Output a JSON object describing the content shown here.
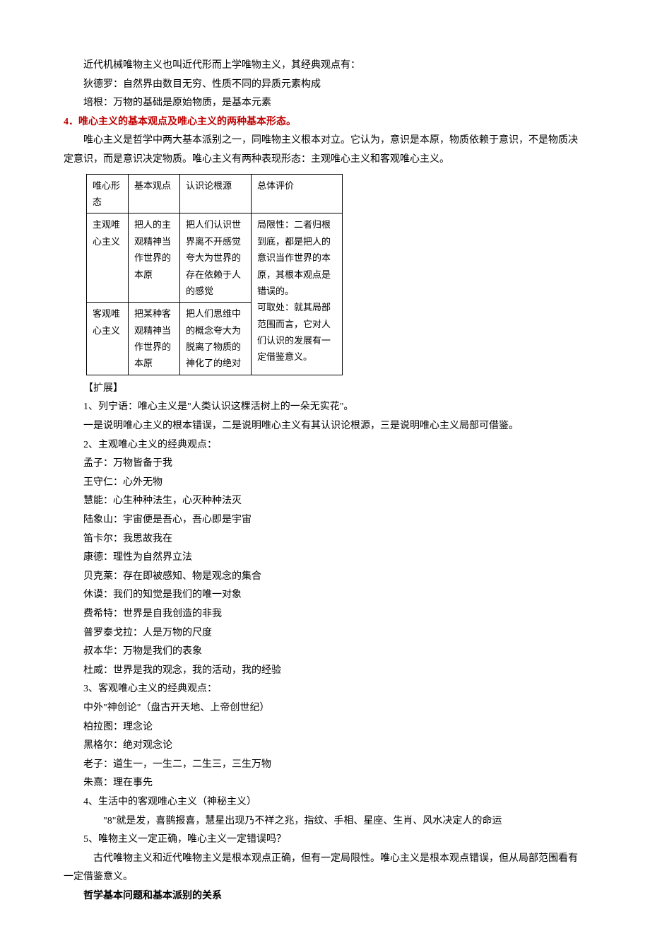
{
  "intro": {
    "l1": "近代机械唯物主义也叫近代形而上学唯物主义，其经典观点有：",
    "l2": "狄德罗：自然界由数目无穷、性质不同的异质元素构成",
    "l3": "培根：万物的基础是原始物质，是基本元素"
  },
  "section4": {
    "title": "4．唯心主义的基本观点及唯心主义的两种基本形态。",
    "body": "唯心主义是哲学中两大基本派别之一，同唯物主义根本对立。它认为，意识是本原，物质依赖于意识，不是物质决定意识，而是意识决定物质。唯心主义有两种表现形态：主观唯心主义和客观唯心主义。"
  },
  "table": {
    "header": {
      "c1": "唯心形态",
      "c2": "基本观点",
      "c3": "认识论根源",
      "c4": "总体评价"
    },
    "row1": {
      "c1": "主观唯心主义",
      "c2": "把人的主观精神当作世界的本原",
      "c3": "把人们认识世界离不开感觉夸大为世界的存在依赖于人的感觉",
      "c4": "局限性：二者归根到底，都是把人的意识当作世界的本原，其根本观点是错误的。\n可取处：就其局部范围而言，它对人们认识的发展有一定借鉴意义。"
    },
    "row2": {
      "c1": "客观唯心主义",
      "c2": "把某种客观精神当作世界的本原",
      "c3": "把人们思维中的概念夸大为脱离了物质的神化了的绝对"
    }
  },
  "ext": {
    "title": "【扩展】",
    "p1a": "1、列宁语：唯心主义是\"人类认识这棵活树上的一朵无实花\"。",
    "p1b": "一是说明唯心主义的根本错误，二是说明唯心主义有其认识论根源，三是说明唯心主义局部可借鉴。",
    "p2": "2、主观唯心主义的经典观点：",
    "p2a": "孟子：万物皆备于我",
    "p2b": "王守仁：心外无物",
    "p2c": "慧能：心生种种法生，心灭种种法灭",
    "p2d": "陆象山：宇宙便是吾心，吾心即是宇宙",
    "p2e": "笛卡尔：我思故我在",
    "p2f": "康德：理性为自然界立法",
    "p2g": "贝克莱：存在即被感知、物是观念的集合",
    "p2h": "休谟：我们的知觉是我们的唯一对象",
    "p2i": "费希特：世界是自我创造的非我",
    "p2j": "普罗泰戈拉：人是万物的尺度",
    "p2k": "叔本华：万物是我们的表象",
    "p2l": "杜威：世界是我的观念，我的活动，我的经验",
    "p3": "3、客观唯心主义的经典观点：",
    "p3a": "中外\"神创论\"（盘古开天地、上帝创世纪）",
    "p3b": "柏拉图：理念论",
    "p3c": "黑格尔：绝对观念论",
    "p3d": "老子：道生一，一生二，二生三，三生万物",
    "p3e": "朱熹：理在事先",
    "p4": "4、生活中的客观唯心主义（神秘主义）",
    "p4a": "\"8\"就是发，喜鹊报喜，慧星出现乃不祥之兆，指纹、手相、星座、生肖、风水决定人的命运",
    "p5": "5、唯物主义一定正确，唯心主义一定错误吗？",
    "p5a": "古代唯物主义和近代唯物主义是根本观点正确，但有一定局限性。唯心主义是根本观点错误，但从局部范围看有一定借鉴意义。"
  },
  "footer": "哲学基本问题和基本派别的关系"
}
